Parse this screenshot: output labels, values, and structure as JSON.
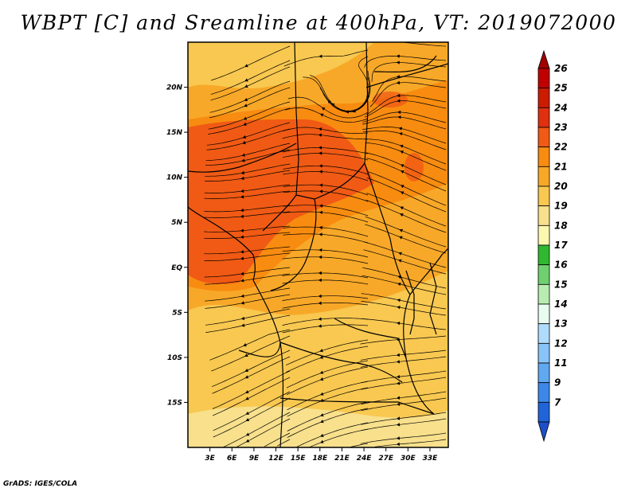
{
  "title": "WBPT [C] and Sreamline at 400hPa, VT: 2019072000",
  "credit": "GrADS: IGES/COLA",
  "map": {
    "lon_range": [
      0,
      35.5
    ],
    "lat_range": [
      -20,
      25
    ],
    "lat_ticks": [
      {
        "value": 20,
        "label": "20N"
      },
      {
        "value": 15,
        "label": "15N"
      },
      {
        "value": 10,
        "label": "10N"
      },
      {
        "value": 5,
        "label": "5N"
      },
      {
        "value": 0,
        "label": "EQ"
      },
      {
        "value": -5,
        "label": "5S"
      },
      {
        "value": -10,
        "label": "10S"
      },
      {
        "value": -15,
        "label": "15S"
      }
    ],
    "lon_ticks": [
      {
        "value": 3,
        "label": "3E"
      },
      {
        "value": 6,
        "label": "6E"
      },
      {
        "value": 9,
        "label": "9E"
      },
      {
        "value": 12,
        "label": "12E"
      },
      {
        "value": 15,
        "label": "15E"
      },
      {
        "value": 18,
        "label": "18E"
      },
      {
        "value": 21,
        "label": "21E"
      },
      {
        "value": 24,
        "label": "24E"
      },
      {
        "value": 27,
        "label": "27E"
      },
      {
        "value": 30,
        "label": "30E"
      },
      {
        "value": 33,
        "label": "33E"
      }
    ],
    "dominant_field": "20-23 C over most of domain, 23 C maximum over West/Central Africa near 5-15N, 19 C in far south"
  },
  "colorbar": {
    "levels": [
      {
        "label": "26",
        "color": "#c00000"
      },
      {
        "label": "25",
        "color": "#cc1c00"
      },
      {
        "label": "24",
        "color": "#e03010"
      },
      {
        "label": "23",
        "color": "#f05a14"
      },
      {
        "label": "22",
        "color": "#f88c10"
      },
      {
        "label": "21",
        "color": "#f8a828"
      },
      {
        "label": "20",
        "color": "#f8c850"
      },
      {
        "label": "19",
        "color": "#f8e08c"
      },
      {
        "label": "18",
        "color": "#fcf8b0"
      },
      {
        "label": "17",
        "color": "#30b830"
      },
      {
        "label": "16",
        "color": "#70d070"
      },
      {
        "label": "15",
        "color": "#b8ecb0"
      },
      {
        "label": "14",
        "color": "#e8fcf0"
      },
      {
        "label": "13",
        "color": "#b0dcfc"
      },
      {
        "label": "12",
        "color": "#88c4f8"
      },
      {
        "label": "11",
        "color": "#60a8f0"
      },
      {
        "label": "9",
        "color": "#3c88e8"
      },
      {
        "label": "7",
        "color": "#2064d8"
      }
    ],
    "top_arrow_color": "#a00000",
    "bottom_arrow_color": "#1c50c8"
  }
}
